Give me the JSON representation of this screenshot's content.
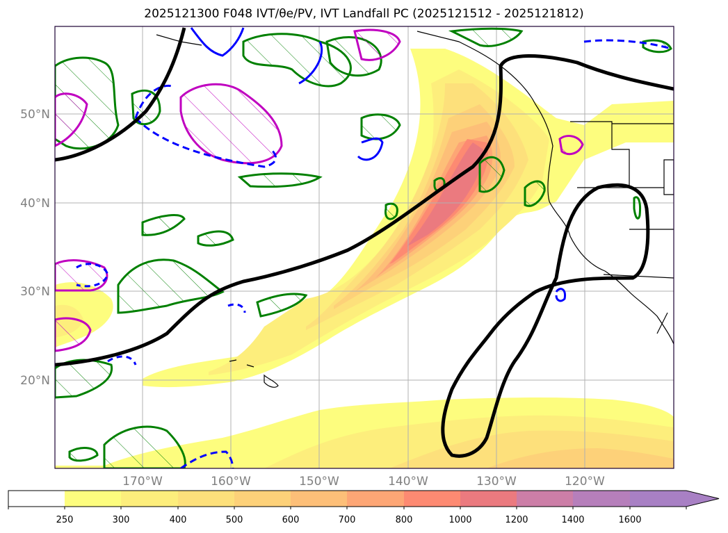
{
  "title": "2025121300 F048 IVT/θe/PV, IVT Landfall PC (2025121512 - 2025121812)",
  "map": {
    "lat_labels": [
      "50°N",
      "40°N",
      "30°N",
      "20°N"
    ],
    "lon_labels": [
      "170°W",
      "160°W",
      "150°W",
      "140°W",
      "130°W",
      "120°W"
    ],
    "projection_extent": {
      "lon_min": -180,
      "lon_max": -110,
      "lat_min": 10,
      "lat_max": 60
    },
    "grid": true
  },
  "colorbar": {
    "ticks": [
      "250",
      "300",
      "400",
      "500",
      "600",
      "700",
      "800",
      "1000",
      "1200",
      "1400",
      "1600"
    ],
    "colors": [
      "#ffffff",
      "#fdfd7e",
      "#fdee7c",
      "#fde07b",
      "#fdd179",
      "#fdbf78",
      "#fda675",
      "#fd8a72",
      "#eb7a7f",
      "#cc7ea7",
      "#a880c4"
    ],
    "extend": "max"
  },
  "colors": {
    "ivt_light": "#fdfd7e",
    "ivt_mid": "#fdd179",
    "ivt_high": "#fd8a72",
    "ivt_core": "#eb7a7f",
    "pc_contour": "#000000",
    "theta_e": "#008000",
    "pv_pos": "#c000c0",
    "pv_neg": "#0000ff",
    "grid": "#b0b0b0",
    "coast": "#000000"
  }
}
